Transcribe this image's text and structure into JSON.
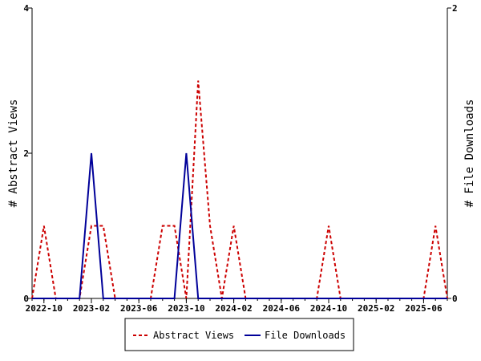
{
  "chart_data": {
    "type": "line",
    "x": [
      "2022-09",
      "2022-10",
      "2022-11",
      "2022-12",
      "2023-01",
      "2023-02",
      "2023-03",
      "2023-04",
      "2023-05",
      "2023-06",
      "2023-07",
      "2023-08",
      "2023-09",
      "2023-10",
      "2023-11",
      "2023-12",
      "2024-01",
      "2024-02",
      "2024-03",
      "2024-04",
      "2024-05",
      "2024-06",
      "2024-07",
      "2024-08",
      "2024-09",
      "2024-10",
      "2024-11",
      "2024-12",
      "2025-01",
      "2025-02",
      "2025-03",
      "2025-04",
      "2025-05",
      "2025-06",
      "2025-07",
      "2025-08"
    ],
    "series": [
      {
        "name": "Abstract Views",
        "axis": "left",
        "color": "#cc0000",
        "style": "dashed",
        "values": [
          0,
          1,
          0,
          0,
          0,
          1,
          1,
          0,
          0,
          0,
          0,
          1,
          1,
          0,
          3,
          1,
          0,
          1,
          0,
          0,
          0,
          0,
          0,
          0,
          0,
          1,
          0,
          0,
          0,
          0,
          0,
          0,
          0,
          0,
          1,
          0
        ]
      },
      {
        "name": "File Downloads",
        "axis": "right",
        "color": "#000099",
        "style": "solid",
        "values": [
          0,
          0,
          0,
          0,
          0,
          1,
          0,
          0,
          0,
          0,
          0,
          0,
          0,
          1,
          0,
          0,
          0,
          0,
          0,
          0,
          0,
          0,
          0,
          0,
          0,
          0,
          0,
          0,
          0,
          0,
          0,
          0,
          0,
          0,
          0,
          0
        ]
      }
    ],
    "x_tick_labels": [
      "2022-10",
      "2023-02",
      "2023-06",
      "2023-10",
      "2024-02",
      "2024-06",
      "2024-10",
      "2025-02",
      "2025-06"
    ],
    "y_left": {
      "label": "# Abstract Views",
      "ylim": [
        0,
        4
      ],
      "ticks": [
        "0",
        "2",
        "4"
      ]
    },
    "y_right": {
      "label": "# File Downloads",
      "ylim": [
        0,
        2
      ],
      "ticks": [
        "0",
        "2"
      ]
    },
    "legend_position": "bottom-center",
    "grid": false,
    "axis_color": "#000000"
  }
}
